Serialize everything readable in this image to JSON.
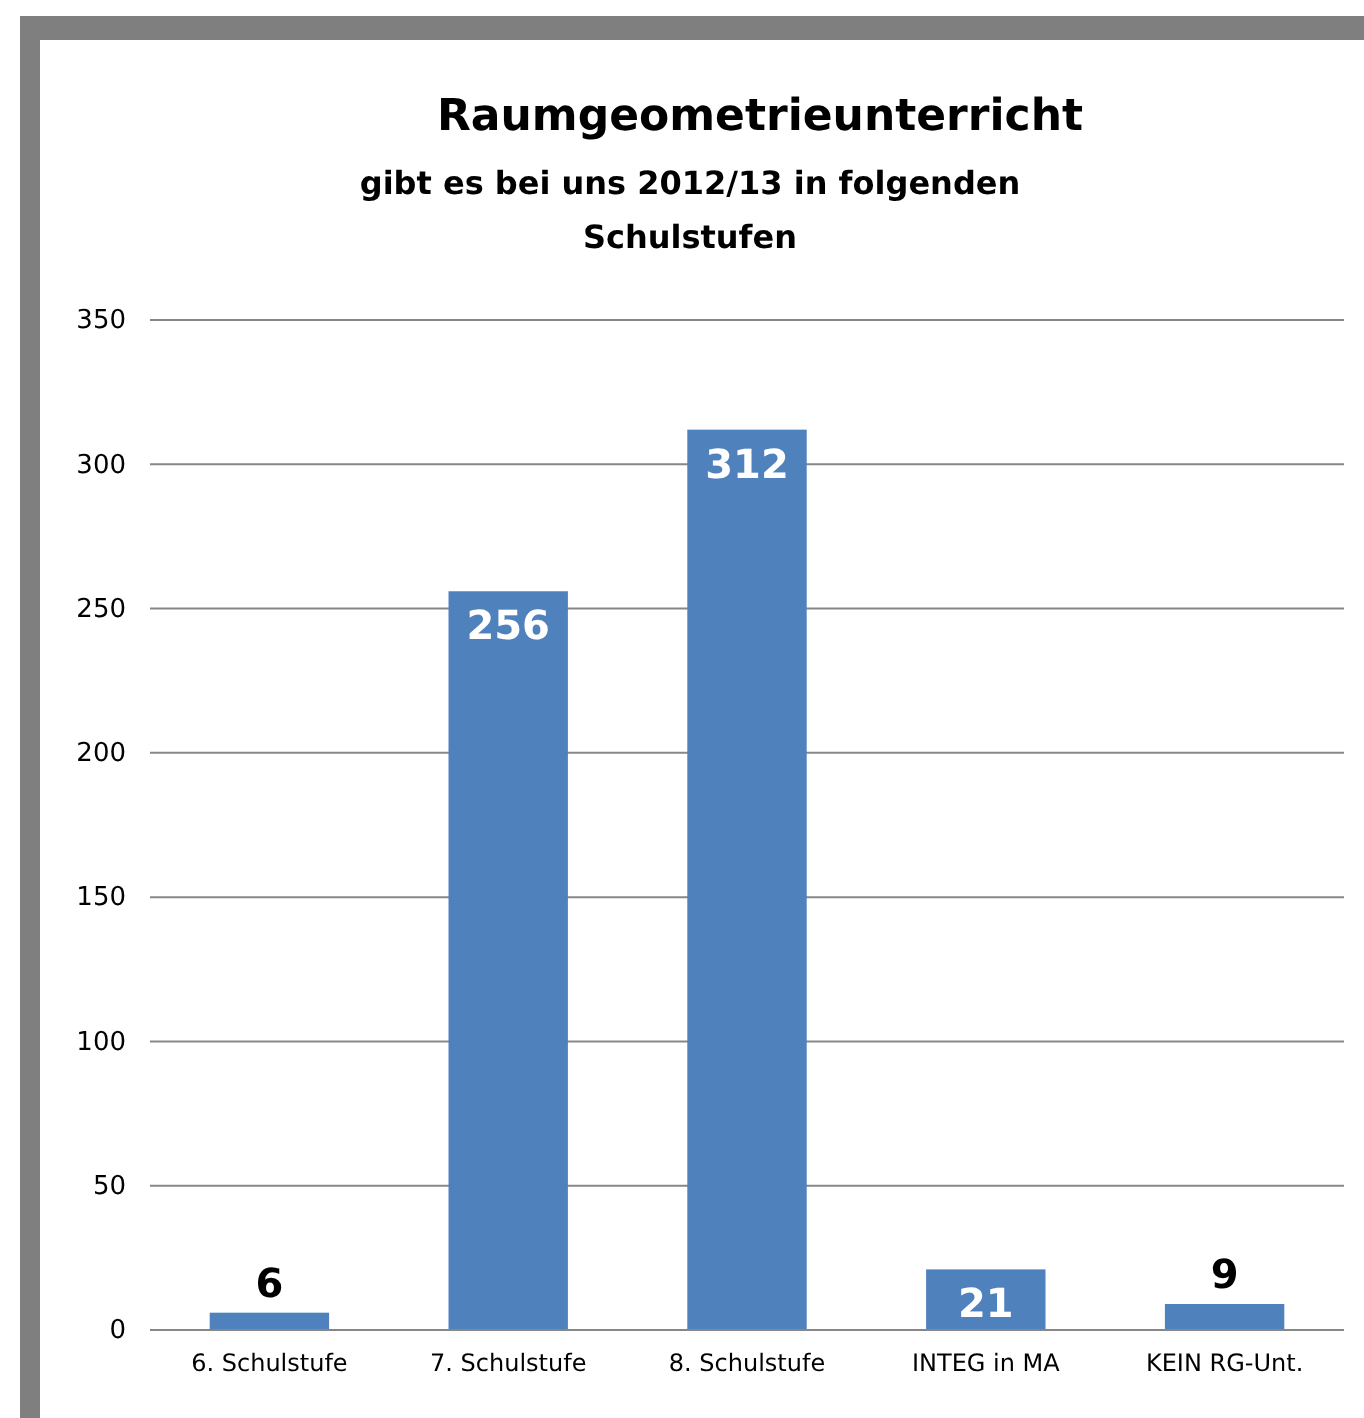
{
  "chart_data": {
    "type": "bar",
    "title": "Raumgeometrieunterricht",
    "subtitle": "gibt es bei uns 2012/13  in folgenden Schulstufen",
    "categories": [
      "6. Schulstufe",
      "7. Schulstufe",
      "8. Schulstufe",
      "INTEG in MA",
      "KEIN RG-Unt."
    ],
    "values": [
      6,
      256,
      312,
      21,
      9
    ],
    "color": "#4f81bd",
    "ylim": [
      0,
      350
    ],
    "yticks": [
      0,
      50,
      100,
      150,
      200,
      250,
      300,
      350
    ],
    "grid": "y",
    "data_labels": true
  }
}
